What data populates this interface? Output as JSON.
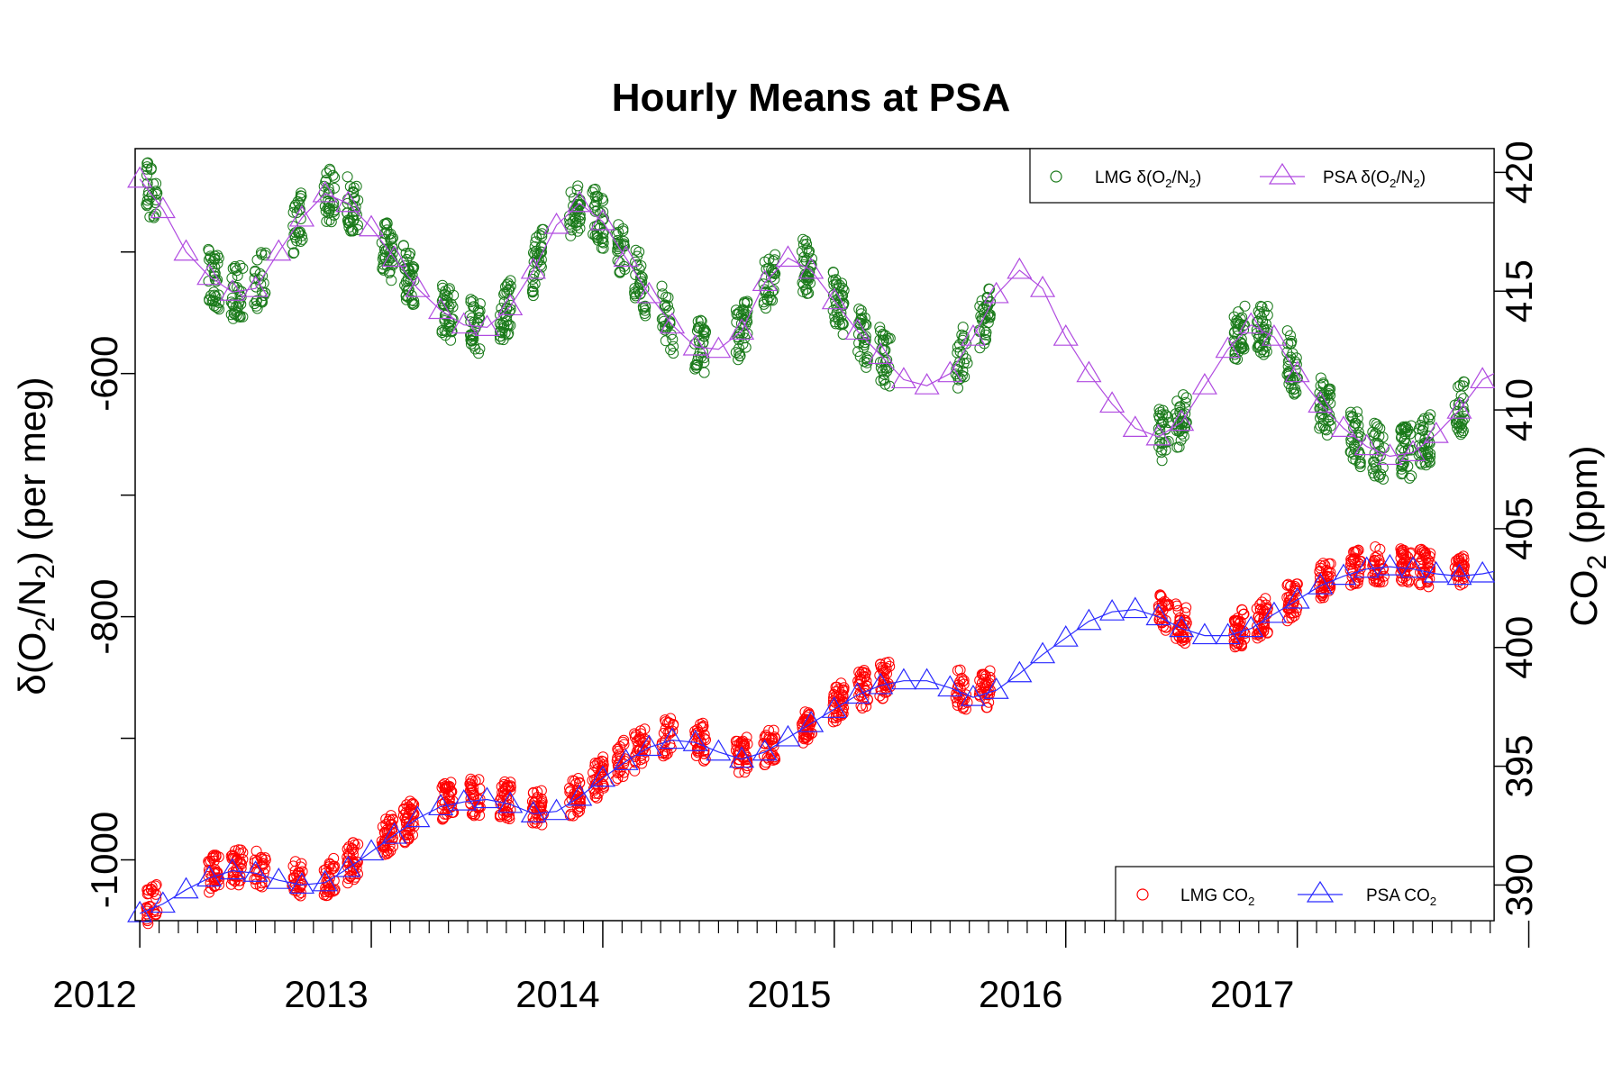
{
  "chart_data": {
    "type": "scatter",
    "title": "Hourly Means at PSA",
    "xlabel": "",
    "ylabel_left": "δ(O2/N2) (per meg)",
    "ylabel_right": "CO2 (ppm)",
    "xlim": [
      2011.98,
      2017.85
    ],
    "ylim_left": [
      -1050,
      -415
    ],
    "ylim_right": [
      388.5,
      421
    ],
    "x_tick_labels": [
      "2012",
      "2013",
      "2014",
      "2015",
      "2016",
      "2017"
    ],
    "x_tick_values": [
      2012,
      2013,
      2014,
      2015,
      2016,
      2017
    ],
    "y_left_tick_labels": [
      "-1000",
      "-800",
      "-600"
    ],
    "y_left_tick_values": [
      -1000,
      -800,
      -600
    ],
    "y_right_tick_labels": [
      "390",
      "395",
      "400",
      "405",
      "410",
      "415",
      "420"
    ],
    "y_right_tick_values": [
      390,
      395,
      400,
      405,
      410,
      415,
      420
    ],
    "colors": {
      "lmg_o2": "#1a7a1a",
      "psa_o2": "#b04ae0",
      "lmg_co2": "#ff0000",
      "psa_co2": "#2a2aff"
    },
    "legends": {
      "o2": [
        {
          "name": "LMG δ(O2/N2)",
          "pre": "LMG δ(O",
          "s1": "2",
          "mid": "/N",
          "s2": "2",
          "post": ")",
          "marker": "circle"
        },
        {
          "name": "PSA δ(O2/N2)",
          "pre": "PSA δ(O",
          "s1": "2",
          "mid": "/N",
          "s2": "2",
          "post": ")",
          "marker": "triangle-line"
        }
      ],
      "co2": [
        {
          "name": "LMG CO2",
          "pre": "LMG CO",
          "s1": "2",
          "marker": "circle"
        },
        {
          "name": "PSA CO2",
          "pre": "PSA CO",
          "s1": "2",
          "marker": "triangle-line"
        }
      ]
    },
    "series": [
      {
        "name": "PSA δ(O2/N2)",
        "axis": "left",
        "style": "triangle-line",
        "x": [
          2012.0,
          2012.1,
          2012.2,
          2012.3,
          2012.4,
          2012.5,
          2012.6,
          2012.7,
          2012.8,
          2012.9,
          2013.0,
          2013.1,
          2013.2,
          2013.3,
          2013.4,
          2013.5,
          2013.6,
          2013.7,
          2013.8,
          2013.9,
          2014.0,
          2014.1,
          2014.2,
          2014.3,
          2014.4,
          2014.5,
          2014.6,
          2014.7,
          2014.8,
          2014.9,
          2015.0,
          2015.1,
          2015.2,
          2015.3,
          2015.4,
          2015.5,
          2015.6,
          2015.7,
          2015.8,
          2015.9,
          2016.0,
          2016.1,
          2016.2,
          2016.3,
          2016.4,
          2016.5,
          2016.6,
          2016.7,
          2016.8,
          2016.9,
          2017.0,
          2017.1,
          2017.2,
          2017.3,
          2017.4,
          2017.5,
          2017.6,
          2017.7,
          2017.8,
          2017.85
        ],
        "y": [
          -440,
          -465,
          -500,
          -520,
          -533,
          -530,
          -500,
          -472,
          -452,
          -460,
          -480,
          -505,
          -530,
          -548,
          -560,
          -562,
          -545,
          -515,
          -478,
          -460,
          -475,
          -505,
          -535,
          -560,
          -578,
          -580,
          -565,
          -525,
          -505,
          -515,
          -540,
          -565,
          -585,
          -605,
          -610,
          -600,
          -570,
          -535,
          -515,
          -530,
          -570,
          -600,
          -625,
          -645,
          -652,
          -640,
          -610,
          -580,
          -560,
          -570,
          -600,
          -625,
          -645,
          -660,
          -668,
          -665,
          -650,
          -630,
          -605,
          -600
        ]
      },
      {
        "name": "PSA CO2",
        "axis": "right",
        "style": "triangle-line",
        "x": [
          2012.0,
          2012.1,
          2012.2,
          2012.3,
          2012.4,
          2012.5,
          2012.6,
          2012.7,
          2012.8,
          2012.9,
          2013.0,
          2013.1,
          2013.2,
          2013.3,
          2013.4,
          2013.5,
          2013.6,
          2013.7,
          2013.8,
          2013.9,
          2014.0,
          2014.1,
          2014.2,
          2014.3,
          2014.4,
          2014.5,
          2014.6,
          2014.7,
          2014.8,
          2014.9,
          2015.0,
          2015.1,
          2015.2,
          2015.3,
          2015.4,
          2015.5,
          2015.6,
          2015.7,
          2015.8,
          2015.9,
          2016.0,
          2016.1,
          2016.2,
          2016.3,
          2016.4,
          2016.5,
          2016.6,
          2016.7,
          2016.8,
          2016.9,
          2017.0,
          2017.1,
          2017.2,
          2017.3,
          2017.4,
          2017.5,
          2017.6,
          2017.7,
          2017.8,
          2017.85
        ],
        "y": [
          388.8,
          389.2,
          389.8,
          390.3,
          390.6,
          390.5,
          390.2,
          390.0,
          390.1,
          390.7,
          391.4,
          392.1,
          392.8,
          393.3,
          393.5,
          393.6,
          393.4,
          393.0,
          393.1,
          393.7,
          394.5,
          395.2,
          395.8,
          396.1,
          396.0,
          395.6,
          395.3,
          395.6,
          396.2,
          396.8,
          397.4,
          398.0,
          398.4,
          398.6,
          398.6,
          398.3,
          397.9,
          398.2,
          398.9,
          399.7,
          400.4,
          401.1,
          401.5,
          401.6,
          401.3,
          400.8,
          400.5,
          400.5,
          400.8,
          401.4,
          402.0,
          402.6,
          403.0,
          403.3,
          403.4,
          403.3,
          403.1,
          403.0,
          403.1,
          403.2
        ]
      }
    ]
  }
}
